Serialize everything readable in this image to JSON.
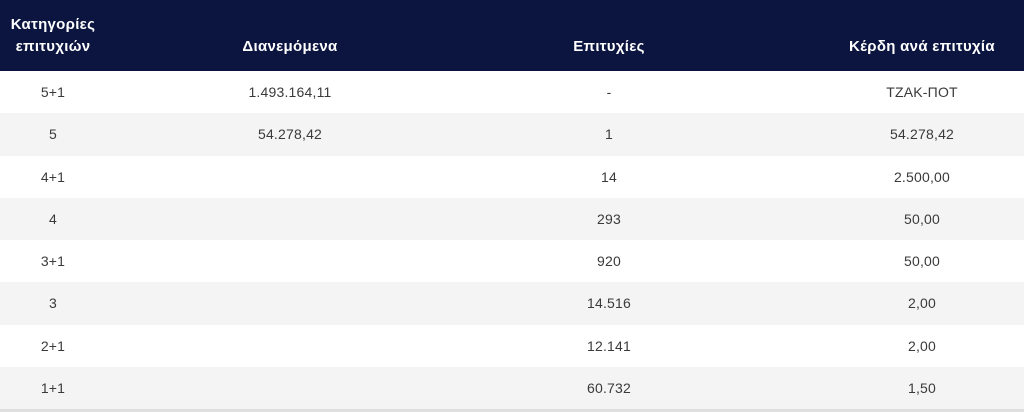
{
  "table": {
    "columns": [
      {
        "key": "category",
        "label": "Κατηγορίες επιτυχιών"
      },
      {
        "key": "distributed",
        "label": "Διανεμόμενα"
      },
      {
        "key": "winners",
        "label": "Επιτυχίες"
      },
      {
        "key": "prize",
        "label": "Κέρδη ανά επιτυχία"
      }
    ],
    "rows": [
      {
        "category": "5+1",
        "distributed": "1.493.164,11",
        "winners": "-",
        "prize": "ΤΖΑΚ-ΠΟΤ"
      },
      {
        "category": "5",
        "distributed": "54.278,42",
        "winners": "1",
        "prize": "54.278,42"
      },
      {
        "category": "4+1",
        "distributed": "",
        "winners": "14",
        "prize": "2.500,00"
      },
      {
        "category": "4",
        "distributed": "",
        "winners": "293",
        "prize": "50,00"
      },
      {
        "category": "3+1",
        "distributed": "",
        "winners": "920",
        "prize": "50,00"
      },
      {
        "category": "3",
        "distributed": "",
        "winners": "14.516",
        "prize": "2,00"
      },
      {
        "category": "2+1",
        "distributed": "",
        "winners": "12.141",
        "prize": "2,00"
      },
      {
        "category": "1+1",
        "distributed": "",
        "winners": "60.732",
        "prize": "1,50"
      }
    ]
  },
  "colors": {
    "header_bg": "#0b1540",
    "header_text": "#ffffff",
    "row_alt_bg": "#f4f4f5",
    "body_text": "#3a3a3a",
    "bottom_border": "#dfdfdf"
  }
}
